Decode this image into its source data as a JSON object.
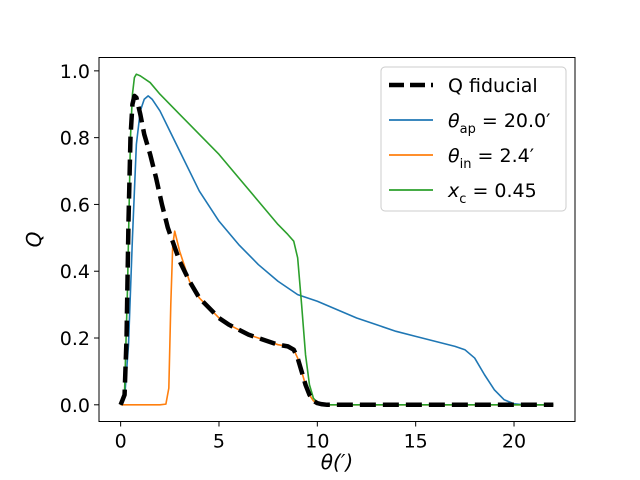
{
  "chart_data": {
    "type": "line",
    "title": "",
    "xlabel": "θ(′)",
    "ylabel": "Q",
    "xlim": [
      -1.1,
      23.1
    ],
    "ylim": [
      -0.05,
      1.04
    ],
    "xticks": [
      0,
      5,
      10,
      15,
      20
    ],
    "xtick_labels": [
      "0",
      "5",
      "10",
      "15",
      "20"
    ],
    "yticks": [
      0.0,
      0.2,
      0.4,
      0.6,
      0.8,
      1.0
    ],
    "ytick_labels": [
      "0.0",
      "0.2",
      "0.4",
      "0.6",
      "0.8",
      "1.0"
    ],
    "grid": false,
    "legend_position": "upper-right",
    "series": [
      {
        "name": "Q fiducial",
        "legend_label": "Q fiducial",
        "color": "#000000",
        "style": "dashed",
        "x": [
          0.0,
          0.2,
          0.3,
          0.4,
          0.5,
          0.6,
          0.7,
          0.8,
          1.0,
          1.2,
          1.5,
          1.8,
          2.1,
          2.4,
          2.7,
          3.0,
          3.5,
          4.0,
          4.5,
          5.0,
          5.5,
          6.0,
          6.5,
          7.0,
          7.5,
          8.0,
          8.5,
          8.8,
          9.0,
          9.2,
          9.4,
          9.6,
          9.8,
          10.0,
          10.2,
          10.5,
          11.0,
          12.0,
          14.0,
          16.0,
          18.0,
          20.0,
          22.0
        ],
        "y": [
          0.0,
          0.03,
          0.2,
          0.55,
          0.8,
          0.9,
          0.925,
          0.92,
          0.87,
          0.81,
          0.75,
          0.68,
          0.6,
          0.53,
          0.48,
          0.43,
          0.37,
          0.32,
          0.29,
          0.26,
          0.24,
          0.225,
          0.21,
          0.2,
          0.19,
          0.18,
          0.175,
          0.165,
          0.14,
          0.1,
          0.06,
          0.03,
          0.012,
          0.005,
          0.002,
          0.0,
          0.0,
          0.0,
          0.0,
          0.0,
          0.0,
          0.0,
          0.0
        ]
      },
      {
        "name": "theta_ap_20",
        "legend_label": "θap = 20.0′",
        "legend_symbol": "θ",
        "legend_sub": "ap",
        "legend_value": " = 20.0′",
        "color": "#1f77b4",
        "style": "solid",
        "x": [
          0.0,
          0.2,
          0.4,
          0.6,
          0.8,
          1.0,
          1.2,
          1.4,
          1.6,
          2.0,
          2.5,
          3.0,
          4.0,
          5.0,
          6.0,
          7.0,
          8.0,
          9.0,
          10.0,
          11.0,
          12.0,
          13.0,
          14.0,
          15.0,
          16.0,
          17.0,
          17.5,
          18.0,
          18.5,
          19.0,
          19.5,
          20.0,
          20.5,
          21.0,
          22.0
        ],
        "y": [
          0.0,
          0.02,
          0.18,
          0.5,
          0.78,
          0.88,
          0.915,
          0.925,
          0.915,
          0.88,
          0.82,
          0.76,
          0.64,
          0.55,
          0.48,
          0.42,
          0.37,
          0.33,
          0.31,
          0.285,
          0.26,
          0.24,
          0.22,
          0.205,
          0.19,
          0.175,
          0.165,
          0.14,
          0.09,
          0.045,
          0.015,
          0.003,
          0.0,
          0.0,
          0.0
        ]
      },
      {
        "name": "theta_in_2.4",
        "legend_label": "θin = 2.4′",
        "legend_symbol": "θ",
        "legend_sub": "in",
        "legend_value": " = 2.4′",
        "color": "#ff7f0e",
        "style": "solid",
        "x": [
          0.0,
          1.0,
          2.0,
          2.3,
          2.45,
          2.55,
          2.65,
          2.75,
          3.0,
          3.5,
          4.0,
          4.5,
          5.0,
          5.5,
          6.0,
          6.5,
          7.0,
          7.5,
          8.0,
          8.5,
          8.8,
          9.0,
          9.2,
          9.4,
          9.6,
          9.8,
          10.0,
          10.2,
          10.5,
          11.0,
          12.0,
          14.0,
          16.0,
          18.0,
          20.0,
          22.0
        ],
        "y": [
          0.0,
          0.0,
          0.0,
          0.002,
          0.05,
          0.3,
          0.48,
          0.52,
          0.46,
          0.37,
          0.32,
          0.29,
          0.26,
          0.24,
          0.225,
          0.21,
          0.2,
          0.19,
          0.18,
          0.175,
          0.165,
          0.14,
          0.1,
          0.06,
          0.03,
          0.012,
          0.005,
          0.002,
          0.0,
          0.0,
          0.0,
          0.0,
          0.0,
          0.0,
          0.0,
          0.0
        ]
      },
      {
        "name": "x_c_0.45",
        "legend_label": "xc = 0.45",
        "legend_symbol": "x",
        "legend_sub": "c",
        "legend_value": " = 0.45",
        "color": "#2ca02c",
        "style": "solid",
        "x": [
          0.0,
          0.2,
          0.35,
          0.5,
          0.6,
          0.7,
          0.8,
          1.0,
          1.5,
          2.0,
          3.0,
          4.0,
          5.0,
          6.0,
          7.0,
          8.0,
          8.5,
          8.8,
          9.0,
          9.2,
          9.4,
          9.6,
          9.8,
          10.0,
          10.2,
          10.5,
          11.0,
          12.0,
          14.0,
          16.0,
          18.0,
          20.0,
          22.0
        ],
        "y": [
          0.0,
          0.04,
          0.35,
          0.8,
          0.93,
          0.98,
          0.99,
          0.985,
          0.965,
          0.93,
          0.87,
          0.81,
          0.75,
          0.68,
          0.61,
          0.54,
          0.51,
          0.49,
          0.44,
          0.3,
          0.15,
          0.06,
          0.02,
          0.006,
          0.002,
          0.0,
          0.0,
          0.0,
          0.0,
          0.0,
          0.0,
          0.0,
          0.0
        ]
      }
    ]
  }
}
